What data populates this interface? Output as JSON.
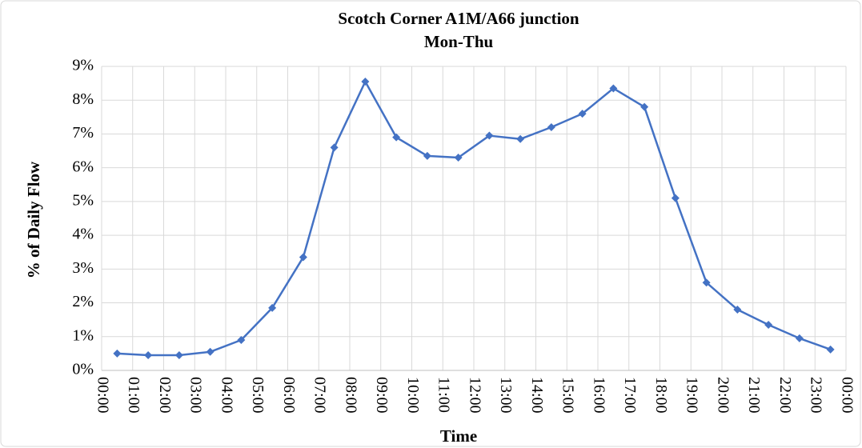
{
  "chart_data": {
    "type": "line",
    "title": "Scotch Corner A1M/A66 junction",
    "subtitle": "Mon-Thu",
    "x_label": "Time",
    "y_label": "% of Daily Flow",
    "color": "#4472c4",
    "x": [
      0.5,
      1.5,
      2.5,
      3.5,
      4.5,
      5.5,
      6.5,
      7.5,
      8.5,
      9.5,
      10.5,
      11.5,
      12.5,
      13.5,
      14.5,
      15.5,
      16.5,
      17.5,
      18.5,
      19.5,
      20.5,
      21.5,
      22.5,
      23.5
    ],
    "values": [
      0.5,
      0.45,
      0.45,
      0.55,
      0.9,
      1.85,
      3.35,
      6.6,
      8.55,
      6.9,
      6.35,
      6.3,
      6.95,
      6.85,
      7.2,
      7.6,
      8.35,
      7.8,
      5.1,
      2.6,
      1.8,
      1.35,
      0.95,
      0.62
    ],
    "xlim": [
      0,
      24
    ],
    "xticks": [
      {
        "value": 0,
        "label": "00:00"
      },
      {
        "value": 1,
        "label": "01:00"
      },
      {
        "value": 2,
        "label": "02:00"
      },
      {
        "value": 3,
        "label": "03:00"
      },
      {
        "value": 4,
        "label": "04:00"
      },
      {
        "value": 5,
        "label": "05:00"
      },
      {
        "value": 6,
        "label": "06:00"
      },
      {
        "value": 7,
        "label": "07:00"
      },
      {
        "value": 8,
        "label": "08:00"
      },
      {
        "value": 9,
        "label": "09:00"
      },
      {
        "value": 10,
        "label": "10:00"
      },
      {
        "value": 11,
        "label": "11:00"
      },
      {
        "value": 12,
        "label": "12:00"
      },
      {
        "value": 13,
        "label": "13:00"
      },
      {
        "value": 14,
        "label": "14:00"
      },
      {
        "value": 15,
        "label": "15:00"
      },
      {
        "value": 16,
        "label": "16:00"
      },
      {
        "value": 17,
        "label": "17:00"
      },
      {
        "value": 18,
        "label": "18:00"
      },
      {
        "value": 19,
        "label": "19:00"
      },
      {
        "value": 20,
        "label": "20:00"
      },
      {
        "value": 21,
        "label": "21:00"
      },
      {
        "value": 22,
        "label": "22:00"
      },
      {
        "value": 23,
        "label": "23:00"
      },
      {
        "value": 24,
        "label": "00:00"
      }
    ],
    "ylim": [
      0,
      9
    ],
    "yticks": [
      {
        "value": 0,
        "label": "0%"
      },
      {
        "value": 1,
        "label": "1%"
      },
      {
        "value": 2,
        "label": "2%"
      },
      {
        "value": 3,
        "label": "3%"
      },
      {
        "value": 4,
        "label": "4%"
      },
      {
        "value": 5,
        "label": "5%"
      },
      {
        "value": 6,
        "label": "6%"
      },
      {
        "value": 7,
        "label": "7%"
      },
      {
        "value": 8,
        "label": "8%"
      },
      {
        "value": 9,
        "label": "9%"
      }
    ],
    "grid": true
  }
}
